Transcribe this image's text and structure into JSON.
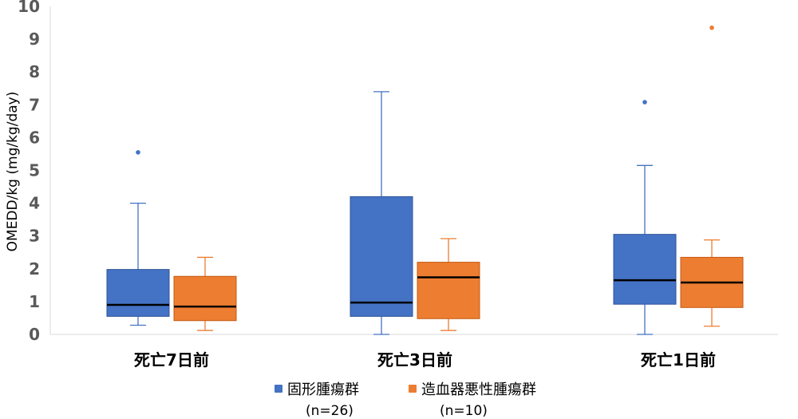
{
  "chart_data": {
    "type": "boxplot",
    "title": "",
    "xlabel": "",
    "ylabel": "OMEDD/kg (mg/kg/day)",
    "ylim": [
      0,
      10
    ],
    "yticks": [
      "0",
      "1",
      "2",
      "3",
      "4",
      "5",
      "6",
      "7",
      "8",
      "9",
      "10"
    ],
    "categories": [
      "死亡7日前",
      "死亡3日前",
      "死亡1日前"
    ],
    "grid": false,
    "legend_position": "bottom",
    "series": [
      {
        "name": "固形腫瘍群",
        "n_label": "(n=26)",
        "color": "#4472C4",
        "boxes": [
          {
            "whisker_low": 0.28,
            "q1": 0.55,
            "median": 0.9,
            "q3": 1.98,
            "whisker_high": 4.0,
            "outliers": [
              5.55
            ]
          },
          {
            "whisker_low": 0.0,
            "q1": 0.55,
            "median": 0.97,
            "q3": 4.2,
            "whisker_high": 7.4,
            "outliers": []
          },
          {
            "whisker_low": 0.0,
            "q1": 0.92,
            "median": 1.65,
            "q3": 3.05,
            "whisker_high": 5.15,
            "outliers": [
              7.08
            ]
          }
        ]
      },
      {
        "name": "造血器悪性腫瘍群",
        "n_label": "(n=10)",
        "color": "#ED7D31",
        "boxes": [
          {
            "whisker_low": 0.12,
            "q1": 0.42,
            "median": 0.85,
            "q3": 1.77,
            "whisker_high": 2.35,
            "outliers": []
          },
          {
            "whisker_low": 0.12,
            "q1": 0.48,
            "median": 1.74,
            "q3": 2.2,
            "whisker_high": 2.92,
            "outliers": []
          },
          {
            "whisker_low": 0.25,
            "q1": 0.82,
            "median": 1.58,
            "q3": 2.35,
            "whisker_high": 2.88,
            "outliers": [
              9.35
            ]
          }
        ]
      }
    ]
  }
}
